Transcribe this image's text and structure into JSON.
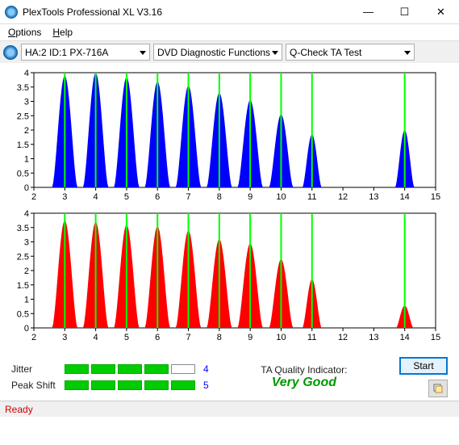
{
  "window": {
    "title": "PlexTools Professional XL V3.16",
    "minimize": "—",
    "maximize": "☐",
    "close": "✕"
  },
  "menu": {
    "options": "Options",
    "options_u": "O",
    "help": "Help",
    "help_u": "H"
  },
  "toolbar": {
    "drive": "HA:2 ID:1  PX-716A",
    "func": "DVD Diagnostic Functions",
    "test": "Q-Check TA Test"
  },
  "chart_top": {
    "type": "histogram-overlay",
    "background_color": "#ffffff",
    "series_color": "#0000ff",
    "ref_line_color": "#00ff00",
    "axis_color": "#000000",
    "box_color": "#000000",
    "x_axis": {
      "min": 2,
      "max": 15,
      "tick_step": 1
    },
    "y_axis": {
      "min": 0,
      "max": 4,
      "tick_step": 0.5
    },
    "ref_lines_x": [
      3,
      4,
      5,
      6,
      7,
      8,
      9,
      10,
      11,
      14
    ],
    "peaks": [
      {
        "x": 3.0,
        "h": 3.9,
        "w": 0.82
      },
      {
        "x": 4.0,
        "h": 4.0,
        "w": 0.82
      },
      {
        "x": 5.0,
        "h": 3.85,
        "w": 0.82
      },
      {
        "x": 6.0,
        "h": 3.7,
        "w": 0.82
      },
      {
        "x": 7.0,
        "h": 3.55,
        "w": 0.82
      },
      {
        "x": 8.0,
        "h": 3.3,
        "w": 0.82
      },
      {
        "x": 9.0,
        "h": 3.05,
        "w": 0.82
      },
      {
        "x": 10.0,
        "h": 2.55,
        "w": 0.78
      },
      {
        "x": 11.0,
        "h": 1.85,
        "w": 0.62
      },
      {
        "x": 14.0,
        "h": 2.0,
        "w": 0.62
      }
    ]
  },
  "chart_bottom": {
    "type": "histogram-overlay",
    "background_color": "#ffffff",
    "series_color": "#ff0000",
    "ref_line_color": "#00ff00",
    "axis_color": "#000000",
    "box_color": "#000000",
    "x_axis": {
      "min": 2,
      "max": 15,
      "tick_step": 1
    },
    "y_axis": {
      "min": 0,
      "max": 4,
      "tick_step": 0.5
    },
    "ref_lines_x": [
      3,
      4,
      5,
      6,
      7,
      8,
      9,
      10,
      11,
      14
    ],
    "peaks": [
      {
        "x": 3.0,
        "h": 3.75,
        "w": 0.82
      },
      {
        "x": 4.0,
        "h": 3.7,
        "w": 0.82
      },
      {
        "x": 5.0,
        "h": 3.6,
        "w": 0.82
      },
      {
        "x": 6.0,
        "h": 3.55,
        "w": 0.82
      },
      {
        "x": 7.0,
        "h": 3.4,
        "w": 0.82
      },
      {
        "x": 8.0,
        "h": 3.1,
        "w": 0.82
      },
      {
        "x": 9.0,
        "h": 2.95,
        "w": 0.82
      },
      {
        "x": 10.0,
        "h": 2.4,
        "w": 0.78
      },
      {
        "x": 11.0,
        "h": 1.7,
        "w": 0.62
      },
      {
        "x": 14.0,
        "h": 0.78,
        "w": 0.56
      }
    ]
  },
  "metrics": {
    "jitter": {
      "label": "Jitter",
      "filled": 4,
      "total": 5,
      "value": "4",
      "fill_color": "#00cc00"
    },
    "peak_shift": {
      "label": "Peak Shift",
      "filled": 5,
      "total": 5,
      "value": "5",
      "fill_color": "#00cc00"
    }
  },
  "ta_indicator": {
    "label": "TA Quality Indicator:",
    "value": "Very Good",
    "value_color": "#009900"
  },
  "buttons": {
    "start": "Start"
  },
  "status": {
    "text": "Ready",
    "color": "#cc0000"
  }
}
